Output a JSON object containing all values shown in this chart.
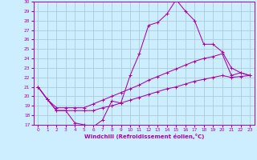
{
  "xlabel": "Windchill (Refroidissement éolien,°C)",
  "bg_color": "#cceeff",
  "grid_color": "#aaccdd",
  "line_color": "#aa00aa",
  "xlim": [
    -0.5,
    23.5
  ],
  "ylim": [
    17,
    30
  ],
  "yticks": [
    17,
    18,
    19,
    20,
    21,
    22,
    23,
    24,
    25,
    26,
    27,
    28,
    29,
    30
  ],
  "xticks": [
    0,
    1,
    2,
    3,
    4,
    5,
    6,
    7,
    8,
    9,
    10,
    11,
    12,
    13,
    14,
    15,
    16,
    17,
    18,
    19,
    20,
    21,
    22,
    23
  ],
  "line1_x": [
    0,
    1,
    2,
    3,
    4,
    5,
    6,
    7,
    8,
    9,
    10,
    11,
    12,
    13,
    14,
    15,
    16,
    17,
    18,
    19,
    20,
    21,
    22,
    23
  ],
  "line1_y": [
    21.0,
    19.7,
    18.5,
    18.5,
    17.2,
    17.0,
    16.8,
    17.5,
    19.5,
    19.3,
    22.2,
    24.5,
    27.5,
    27.8,
    28.7,
    30.2,
    29.0,
    28.0,
    25.5,
    25.5,
    24.7,
    23.0,
    22.5,
    22.2
  ],
  "line2_x": [
    0,
    1,
    2,
    3,
    4,
    5,
    6,
    7,
    8,
    9,
    10,
    11,
    12,
    13,
    14,
    15,
    16,
    17,
    18,
    19,
    20,
    21,
    22,
    23
  ],
  "line2_y": [
    21.0,
    19.7,
    18.8,
    18.8,
    18.8,
    18.8,
    19.2,
    19.6,
    20.0,
    20.4,
    20.8,
    21.2,
    21.7,
    22.1,
    22.5,
    22.9,
    23.3,
    23.7,
    24.0,
    24.2,
    24.5,
    22.2,
    22.5,
    22.2
  ],
  "line3_x": [
    0,
    1,
    2,
    3,
    4,
    5,
    6,
    7,
    8,
    9,
    10,
    11,
    12,
    13,
    14,
    15,
    16,
    17,
    18,
    19,
    20,
    21,
    22,
    23
  ],
  "line3_y": [
    21.0,
    19.7,
    18.5,
    18.5,
    18.5,
    18.5,
    18.5,
    18.8,
    19.0,
    19.3,
    19.6,
    19.9,
    20.2,
    20.5,
    20.8,
    21.0,
    21.3,
    21.6,
    21.8,
    22.0,
    22.2,
    22.0,
    22.1,
    22.2
  ]
}
